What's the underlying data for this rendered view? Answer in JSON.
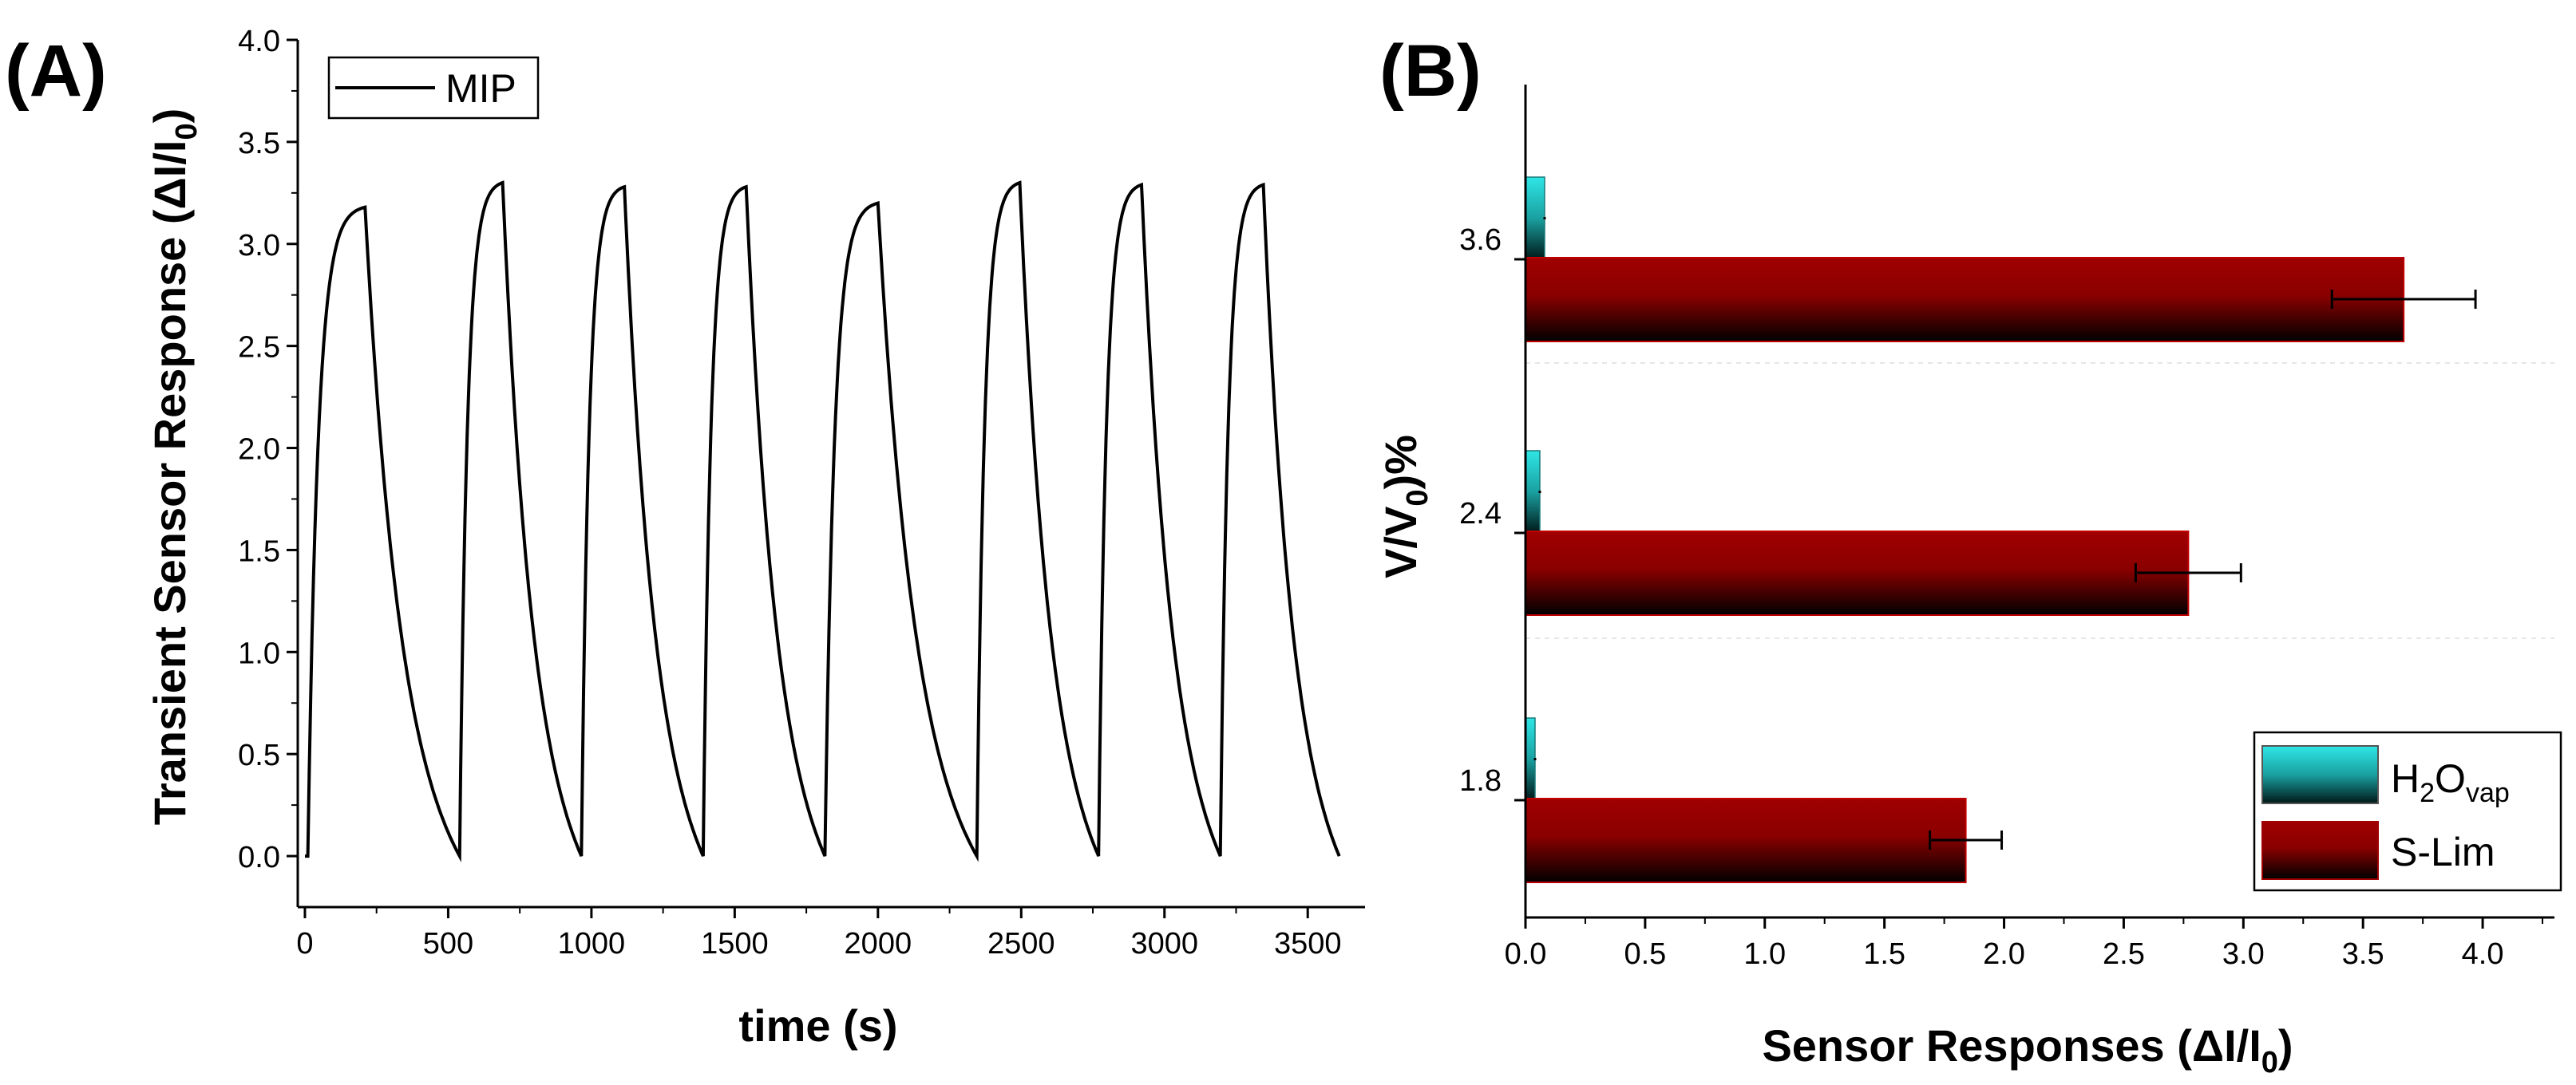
{
  "panels": {
    "a": {
      "label": "(A)"
    },
    "b": {
      "label": "(B)"
    }
  },
  "chart_data": [
    {
      "type": "line",
      "panel": "A",
      "title": "",
      "xlabel": "time (s)",
      "ylabel": "Transient Sensor Response (ΔI/I0)",
      "ylabel_parts": {
        "main": "Transient Sensor Response (ΔI/I",
        "sub": "0",
        "end": ")"
      },
      "xlim": [
        -25,
        3700
      ],
      "ylim": [
        -0.25,
        4.0
      ],
      "xticks": [
        0,
        500,
        1000,
        1500,
        2000,
        2500,
        3000,
        3500
      ],
      "xtick_labels": [
        "0",
        "500",
        "1000",
        "1500",
        "2000",
        "2500",
        "3000",
        "3500"
      ],
      "yticks": [
        0.0,
        0.5,
        1.0,
        1.5,
        2.0,
        2.5,
        3.0,
        3.5,
        4.0
      ],
      "ytick_labels": [
        "0.0",
        "0.5",
        "1.0",
        "1.5",
        "2.0",
        "2.5",
        "3.0",
        "3.5",
        "4.0"
      ],
      "legend": {
        "entries": [
          "MIP"
        ],
        "position": "top-left"
      },
      "series": [
        {
          "name": "MIP",
          "cycles": [
            {
              "on": 10,
              "off": 210,
              "peak": 3.18
            },
            {
              "on": 540,
              "off": 690,
              "peak": 3.3
            },
            {
              "on": 965,
              "off": 1115,
              "peak": 3.28
            },
            {
              "on": 1390,
              "off": 1540,
              "peak": 3.28
            },
            {
              "on": 1815,
              "off": 2000,
              "peak": 3.2
            },
            {
              "on": 2345,
              "off": 2495,
              "peak": 3.3
            },
            {
              "on": 2770,
              "off": 2920,
              "peak": 3.29
            },
            {
              "on": 3195,
              "off": 3345,
              "peak": 3.29
            }
          ],
          "end_time": 3610
        }
      ]
    },
    {
      "type": "bar",
      "orientation": "horizontal",
      "panel": "B",
      "title": "",
      "xlabel": "Sensor Responses (ΔI/I0)",
      "xlabel_parts": {
        "main": "Sensor Responses (ΔI/I",
        "sub": "0",
        "end": ")"
      },
      "ylabel": "V/V0)%",
      "ylabel_parts": {
        "main": "V/V",
        "sub": "0",
        "end": ")%"
      },
      "xlim": [
        0,
        4.3
      ],
      "xticks": [
        0.0,
        0.5,
        1.0,
        1.5,
        2.0,
        2.5,
        3.0,
        3.5,
        4.0
      ],
      "xtick_labels": [
        "0.0",
        "0.5",
        "1.0",
        "1.5",
        "2.0",
        "2.5",
        "3.0",
        "3.5",
        "4.0"
      ],
      "categories": [
        "1.8",
        "2.4",
        "3.6"
      ],
      "series": [
        {
          "name": "H2Ovap",
          "legend_parts": {
            "main": "H",
            "sub1": "2",
            "mid": "O",
            "sub2": "vap"
          },
          "values": [
            0.04,
            0.06,
            0.08
          ],
          "errors": [
            0.005,
            0.005,
            0.005
          ],
          "color": "#2fe0e0"
        },
        {
          "name": "S-Lim",
          "legend_parts": {
            "main": "S-Lim"
          },
          "values": [
            1.84,
            2.77,
            3.67
          ],
          "errors": [
            0.15,
            0.22,
            0.3
          ],
          "color": "#a00000"
        }
      ],
      "legend": {
        "position": "bottom-right"
      }
    }
  ]
}
